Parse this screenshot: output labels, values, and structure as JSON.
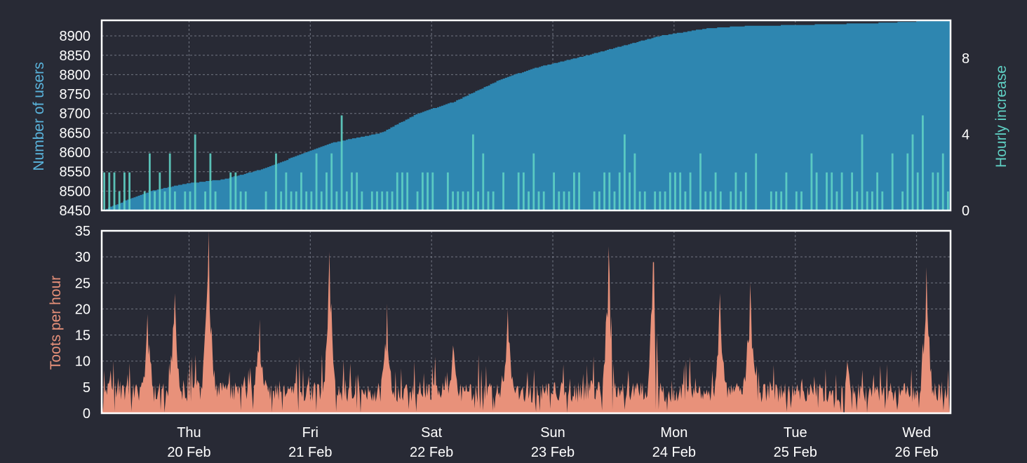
{
  "colors": {
    "background": "#282a35",
    "users_area": "#2e86b0",
    "hourly_increase": "#5fd0c4",
    "toots": "#e8917a",
    "users_label": "#5ab4dc",
    "hourly_label": "#5fd0c4",
    "toots_label": "#e8917a"
  },
  "chart_data": [
    {
      "type": "area",
      "ylabel": "Number of users",
      "y2label": "Hourly increase",
      "ylim": [
        8450,
        8940
      ],
      "y2lim": [
        0,
        10
      ],
      "yticks": [
        8450,
        8500,
        8550,
        8600,
        8650,
        8700,
        8750,
        8800,
        8850,
        8900
      ],
      "y2ticks": [
        0,
        4,
        8
      ],
      "x_range_days": [
        0,
        7
      ],
      "grid": true,
      "series": [
        {
          "name": "Number of users",
          "kind": "area",
          "x_days": [
            0,
            0.15,
            0.4,
            0.7,
            1.0,
            1.3,
            1.6,
            1.9,
            2.3,
            2.6,
            2.9,
            3.3,
            3.6,
            4.0,
            4.3,
            4.6,
            5.0,
            5.3,
            5.6,
            6.0,
            6.4,
            6.8,
            7.0
          ],
          "values": [
            8450,
            8470,
            8500,
            8520,
            8530,
            8555,
            8590,
            8625,
            8650,
            8700,
            8730,
            8790,
            8820,
            8850,
            8875,
            8900,
            8920,
            8925,
            8927,
            8930,
            8933,
            8938,
            8940
          ]
        },
        {
          "name": "Hourly increase",
          "kind": "spikes",
          "axis": "right",
          "description_range": [
            0,
            5
          ]
        }
      ]
    },
    {
      "type": "area",
      "ylabel": "Toots per hour",
      "ylim": [
        0,
        35
      ],
      "yticks": [
        0,
        5,
        10,
        15,
        20,
        25,
        30,
        35
      ],
      "x_range_days": [
        0,
        7
      ],
      "grid": true,
      "peaks": [
        {
          "day": 0.38,
          "value": 19
        },
        {
          "day": 0.6,
          "value": 23
        },
        {
          "day": 0.88,
          "value": 35
        },
        {
          "day": 1.3,
          "value": 18
        },
        {
          "day": 1.88,
          "value": 31
        },
        {
          "day": 2.35,
          "value": 21
        },
        {
          "day": 2.9,
          "value": 13
        },
        {
          "day": 3.35,
          "value": 20
        },
        {
          "day": 4.18,
          "value": 32
        },
        {
          "day": 4.55,
          "value": 29
        },
        {
          "day": 5.1,
          "value": 23
        },
        {
          "day": 5.35,
          "value": 25
        },
        {
          "day": 6.15,
          "value": 10
        },
        {
          "day": 6.8,
          "value": 28
        }
      ]
    }
  ],
  "x_axis": {
    "labels": [
      {
        "day": "Thu",
        "date": "20 Feb"
      },
      {
        "day": "Fri",
        "date": "21 Feb"
      },
      {
        "day": "Sat",
        "date": "22 Feb"
      },
      {
        "day": "Sun",
        "date": "23 Feb"
      },
      {
        "day": "Mon",
        "date": "24 Feb"
      },
      {
        "day": "Tue",
        "date": "25 Feb"
      },
      {
        "day": "Wed",
        "date": "26 Feb"
      }
    ]
  }
}
